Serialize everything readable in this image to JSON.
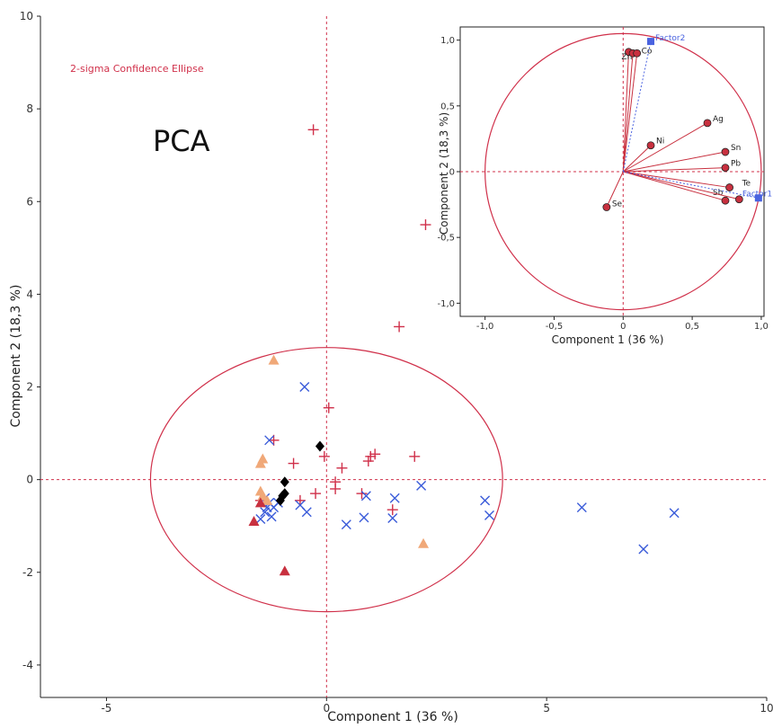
{
  "colors": {
    "red": "#d0304a",
    "blue": "#3a5bd9",
    "orange": "#f0a878",
    "darkred": "#c8303f",
    "black": "#000000",
    "factor": "#4a63e0"
  },
  "chart_data": [
    {
      "type": "scatter",
      "title": "PCA",
      "subtitle": "2-sigma Confidence Ellipse",
      "xlabel": "Component 1  (36 %)",
      "ylabel": "Component 2  (18,3 %)",
      "xlim": [
        -6.5,
        10
      ],
      "ylim": [
        -4.7,
        10
      ],
      "xticks": [
        -5,
        0,
        5,
        10
      ],
      "yticks": [
        -4,
        -2,
        0,
        2,
        4,
        6,
        8,
        10
      ],
      "grid": false,
      "ellipse": {
        "cx": 0,
        "cy": 0,
        "rx": 4,
        "ry": 2.85
      },
      "series": [
        {
          "marker": "plus",
          "color": "#d0304a",
          "points": [
            [
              -0.3,
              7.55
            ],
            [
              2.25,
              5.5
            ],
            [
              1.65,
              3.3
            ],
            [
              0.05,
              1.55
            ],
            [
              -1.2,
              0.85
            ],
            [
              -0.05,
              0.5
            ],
            [
              -0.75,
              0.35
            ],
            [
              0.35,
              0.25
            ],
            [
              0.95,
              0.4
            ],
            [
              1.0,
              0.5
            ],
            [
              1.1,
              0.55
            ],
            [
              2.0,
              0.5
            ],
            [
              0.2,
              -0.05
            ],
            [
              0.2,
              -0.2
            ],
            [
              -0.25,
              -0.3
            ],
            [
              -0.6,
              -0.45
            ],
            [
              0.8,
              -0.3
            ],
            [
              1.5,
              -0.65
            ],
            [
              -1.5,
              -0.45
            ]
          ]
        },
        {
          "marker": "x",
          "color": "#3a5bd9",
          "points": [
            [
              -0.5,
              2.0
            ],
            [
              -1.3,
              0.85
            ],
            [
              -1.4,
              -0.4
            ],
            [
              -1.3,
              -0.5
            ],
            [
              -1.2,
              -0.6
            ],
            [
              -1.4,
              -0.7
            ],
            [
              -1.25,
              -0.8
            ],
            [
              -1.5,
              -0.85
            ],
            [
              -1.1,
              -0.5
            ],
            [
              -0.6,
              -0.55
            ],
            [
              -0.45,
              -0.7
            ],
            [
              0.9,
              -0.35
            ],
            [
              1.55,
              -0.4
            ],
            [
              2.15,
              -0.13
            ],
            [
              0.85,
              -0.82
            ],
            [
              1.5,
              -0.83
            ],
            [
              0.45,
              -0.97
            ],
            [
              3.6,
              -0.45
            ],
            [
              3.7,
              -0.77
            ],
            [
              5.8,
              -0.6
            ],
            [
              7.9,
              -0.72
            ],
            [
              7.2,
              -1.5
            ],
            [
              -1.35,
              -0.6
            ]
          ]
        },
        {
          "marker": "triangle",
          "color": "#f0a878",
          "points": [
            [
              -1.2,
              2.58
            ],
            [
              -1.45,
              0.45
            ],
            [
              -1.5,
              0.35
            ],
            [
              -1.5,
              -0.25
            ],
            [
              -1.45,
              -0.35
            ],
            [
              -1.35,
              -0.45
            ],
            [
              2.2,
              -1.38
            ]
          ]
        },
        {
          "marker": "triangle",
          "color": "#c8303f",
          "points": [
            [
              -1.65,
              -0.9
            ],
            [
              -0.95,
              -1.97
            ],
            [
              -1.5,
              -0.5
            ]
          ]
        },
        {
          "marker": "diamond",
          "color": "#000000",
          "points": [
            [
              -0.15,
              0.72
            ],
            [
              -0.95,
              -0.05
            ],
            [
              -0.95,
              -0.3
            ],
            [
              -1.0,
              -0.35
            ],
            [
              -1.05,
              -0.45
            ]
          ]
        }
      ]
    },
    {
      "type": "scatter",
      "xlabel": "Component 1  (36 %)",
      "ylabel": "Component 2  (18,3 %)",
      "xlim": [
        -1.18,
        1.02
      ],
      "ylim": [
        -1.1,
        1.1
      ],
      "xticks": [
        -1.0,
        -0.5,
        0,
        0.5,
        1.0
      ],
      "yticks": [
        -1.0,
        -0.5,
        0,
        0.5,
        1.0
      ],
      "xtick_labels": [
        "-1,0",
        "-0,5",
        "0",
        "0,5",
        "1,0"
      ],
      "ytick_labels": [
        "-1,0",
        "-0,5",
        "0",
        "0,5",
        "1,0"
      ],
      "circle_radius": 1,
      "variables": [
        {
          "name": "Zn",
          "x": 0.04,
          "y": 0.91,
          "label_dx": -8,
          "label_dy": 8
        },
        {
          "name": "",
          "x": 0.07,
          "y": 0.9
        },
        {
          "name": "Co",
          "x": 0.1,
          "y": 0.9,
          "label_dx": 5,
          "label_dy": 0
        },
        {
          "name": "Ag",
          "x": 0.61,
          "y": 0.37,
          "label_dx": 6,
          "label_dy": -2
        },
        {
          "name": "Ni",
          "x": 0.2,
          "y": 0.2,
          "label_dx": 6,
          "label_dy": -2
        },
        {
          "name": "Sn",
          "x": 0.74,
          "y": 0.15,
          "label_dx": 6,
          "label_dy": -2
        },
        {
          "name": "Pb",
          "x": 0.74,
          "y": 0.03,
          "label_dx": 6,
          "label_dy": -2
        },
        {
          "name": "Te",
          "x": 0.77,
          "y": -0.12,
          "label_dx": 14,
          "label_dy": -2
        },
        {
          "name": "Sb",
          "x": 0.74,
          "y": -0.22,
          "label_dx": -14,
          "label_dy": -6
        },
        {
          "name": "",
          "x": 0.84,
          "y": -0.21
        },
        {
          "name": "Se",
          "x": -0.12,
          "y": -0.27,
          "label_dx": 6,
          "label_dy": -1
        }
      ],
      "factors": [
        {
          "name": "Factor2",
          "x": 0.2,
          "y": 0.99,
          "label_dx": 5,
          "label_dy": -1
        },
        {
          "name": "Factor1",
          "x": 0.98,
          "y": -0.2,
          "label_dx": -18,
          "label_dy": -2
        }
      ]
    }
  ]
}
